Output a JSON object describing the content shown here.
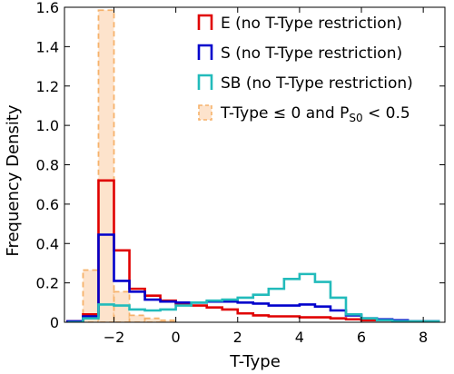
{
  "chart_data": {
    "type": "histogram",
    "xlabel": "T-Type",
    "ylabel": "Frequency Density",
    "xlim": [
      -3.6,
      8.7
    ],
    "ylim": [
      0,
      1.6
    ],
    "xticks": [
      -2,
      0,
      2,
      4,
      6,
      8
    ],
    "xtick_labels": [
      "−2",
      "0",
      "2",
      "4",
      "6",
      "8"
    ],
    "yticks": [
      0,
      0.2,
      0.4,
      0.6,
      0.8,
      1.0,
      1.2,
      1.4,
      1.6
    ],
    "ytick_labels": [
      "0",
      "0.2",
      "0.4",
      "0.6",
      "0.8",
      "1.0",
      "1.2",
      "1.4",
      "1.6"
    ],
    "legend": {
      "position": "top-right",
      "items": [
        {
          "series_index": 0,
          "text": "E (no T-Type restriction)"
        },
        {
          "series_index": 1,
          "text": "S (no T-Type restriction)"
        },
        {
          "series_index": 2,
          "text": "SB (no T-Type restriction)"
        },
        {
          "series_index": 3,
          "text_before": "T-Type ≤ 0 and P",
          "subscript": "S0",
          "text_after": " < 0.5"
        }
      ]
    },
    "bin_edges": [
      -3.5,
      -3.0,
      -2.5,
      -2.0,
      -1.5,
      -1.0,
      -0.5,
      0.0,
      0.5,
      1.0,
      1.5,
      2.0,
      2.5,
      3.0,
      3.5,
      4.0,
      4.5,
      5.0,
      5.5,
      6.0,
      6.5,
      7.0,
      7.5,
      8.0,
      8.5
    ],
    "series": [
      {
        "name": "E (no T-Type restriction)",
        "style": "step",
        "color": "#e00000",
        "values": [
          0.005,
          0.04,
          0.72,
          0.365,
          0.17,
          0.135,
          0.11,
          0.09,
          0.085,
          0.075,
          0.065,
          0.045,
          0.035,
          0.03,
          0.03,
          0.025,
          0.025,
          0.02,
          0.015,
          0.01,
          0.01,
          0.005,
          0.005,
          0.005
        ]
      },
      {
        "name": "S (no T-Type restriction)",
        "style": "step",
        "color": "#0000cc",
        "values": [
          0.005,
          0.03,
          0.445,
          0.21,
          0.155,
          0.115,
          0.105,
          0.1,
          0.1,
          0.105,
          0.105,
          0.1,
          0.095,
          0.085,
          0.085,
          0.09,
          0.08,
          0.06,
          0.035,
          0.02,
          0.015,
          0.01,
          0.005,
          0.005
        ]
      },
      {
        "name": "SB (no T-Type restriction)",
        "style": "step",
        "color": "#22bbbb",
        "values": [
          0.0,
          0.02,
          0.09,
          0.085,
          0.065,
          0.06,
          0.065,
          0.085,
          0.1,
          0.11,
          0.115,
          0.125,
          0.14,
          0.17,
          0.22,
          0.245,
          0.205,
          0.125,
          0.04,
          0.02,
          0.01,
          0.005,
          0.005,
          0.005
        ]
      },
      {
        "name": "T-Type ≤ 0 and PS0 < 0.5",
        "style": "filled-dashed",
        "color": "#f6b26b",
        "fill": "#fde3cc",
        "values": [
          0.0,
          0.265,
          1.585,
          0.155,
          0.035,
          0.02,
          0.01,
          0.0,
          0.0,
          0.0,
          0.0,
          0.0,
          0.0,
          0.0,
          0.0,
          0.0,
          0.0,
          0.0,
          0.0,
          0.0,
          0.0,
          0.0,
          0.0,
          0.0
        ]
      }
    ]
  }
}
